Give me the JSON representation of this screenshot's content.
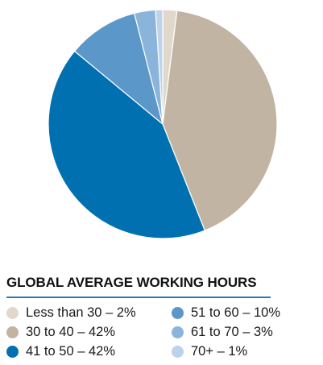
{
  "chart_data": {
    "type": "pie",
    "title": "GLOBAL AVERAGE WORKING HOURS",
    "start_angle_deg": 0,
    "direction": "clockwise",
    "slices": [
      {
        "label": "Less than 30 – 2%",
        "value": 2,
        "color": "#e1d8cc"
      },
      {
        "label": "30 to 40 – 42%",
        "value": 42,
        "color": "#c2b4a2"
      },
      {
        "label": "41 to 50 – 42%",
        "value": 42,
        "color": "#0070b1"
      },
      {
        "label": "51 to 60 – 10%",
        "value": 10,
        "color": "#5b97c8"
      },
      {
        "label": "61 to 70 – 3%",
        "value": 3,
        "color": "#8bb4db"
      },
      {
        "label": "70+ – 1%",
        "value": 1,
        "color": "#bcd3eb"
      }
    ],
    "legend": {
      "placement": "bottom",
      "columns": [
        [
          0,
          1,
          2
        ],
        [
          3,
          4,
          5
        ]
      ]
    },
    "accent_rule_color": "#2a7ab8"
  }
}
